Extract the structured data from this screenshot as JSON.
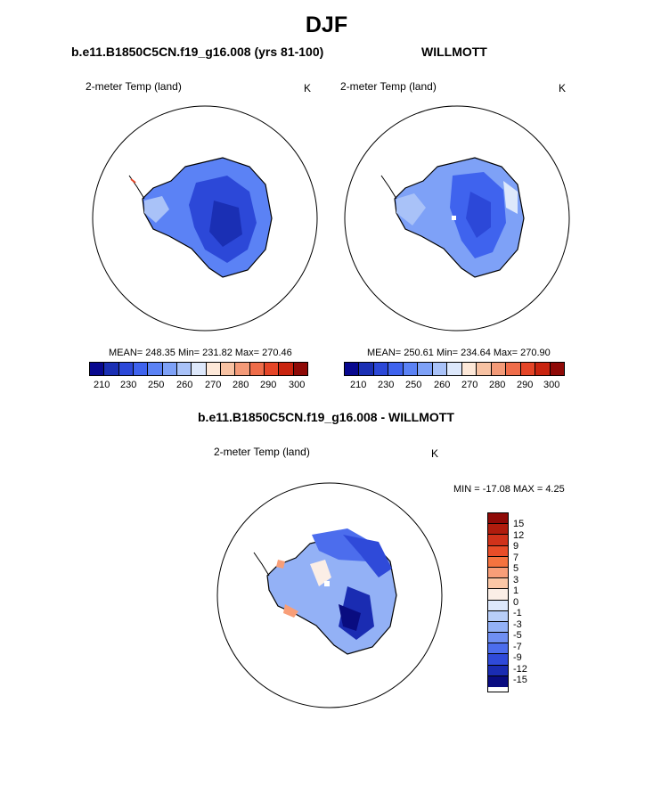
{
  "page_title": "DJF",
  "panels": [
    {
      "title": "b.e11.B1850C5CN.f19_g16.008 (yrs 81-100)",
      "variable": "2-meter Temp (land)",
      "units": "K",
      "stats": "MEAN= 248.35  Min= 231.82  Max= 270.46",
      "colorbar_ticks": [
        "210",
        "230",
        "250",
        "260",
        "270",
        "280",
        "290",
        "300"
      ]
    },
    {
      "title": "WILLMOTT",
      "variable": "2-meter Temp (land)",
      "units": "K",
      "stats": "MEAN= 250.61  Min= 234.64  Max= 270.90",
      "colorbar_ticks": [
        "210",
        "230",
        "250",
        "260",
        "270",
        "280",
        "290",
        "300"
      ]
    },
    {
      "title": "b.e11.B1850C5CN.f19_g16.008 - WILLMOTT",
      "variable": "2-meter Temp (land)",
      "units": "K",
      "stats": "MIN = -17.08 MAX =   4.25",
      "colorbar_ticks": [
        "15",
        "12",
        "9",
        "7",
        "5",
        "3",
        "1",
        "0",
        "-1",
        "-3",
        "-5",
        "-7",
        "-9",
        "-12",
        "-15"
      ]
    }
  ],
  "colors": {
    "temp_scale": [
      "#08088f",
      "#1a2fb4",
      "#2c48d8",
      "#3f63ee",
      "#5b82f5",
      "#7ea1f7",
      "#a9c2f8",
      "#dde8fb",
      "#fde8d8",
      "#f7c2a3",
      "#f39a78",
      "#ef6d4a",
      "#e54527",
      "#c9240f",
      "#8f0a07"
    ],
    "diff_scale": [
      "#8f0a07",
      "#b01c0d",
      "#d0321a",
      "#e84d28",
      "#f4733f",
      "#f89e78",
      "#fcc7a6",
      "#fbeee6",
      "#dde8fb",
      "#b8cef8",
      "#93b1f6",
      "#6f8ff3",
      "#4c6ded",
      "#2f4ad9",
      "#1a2cb2",
      "#090c80"
    ],
    "land_mid": "#3f63ee",
    "land_light": "#7ea1f7",
    "land_pale": "#a9c2f8"
  }
}
